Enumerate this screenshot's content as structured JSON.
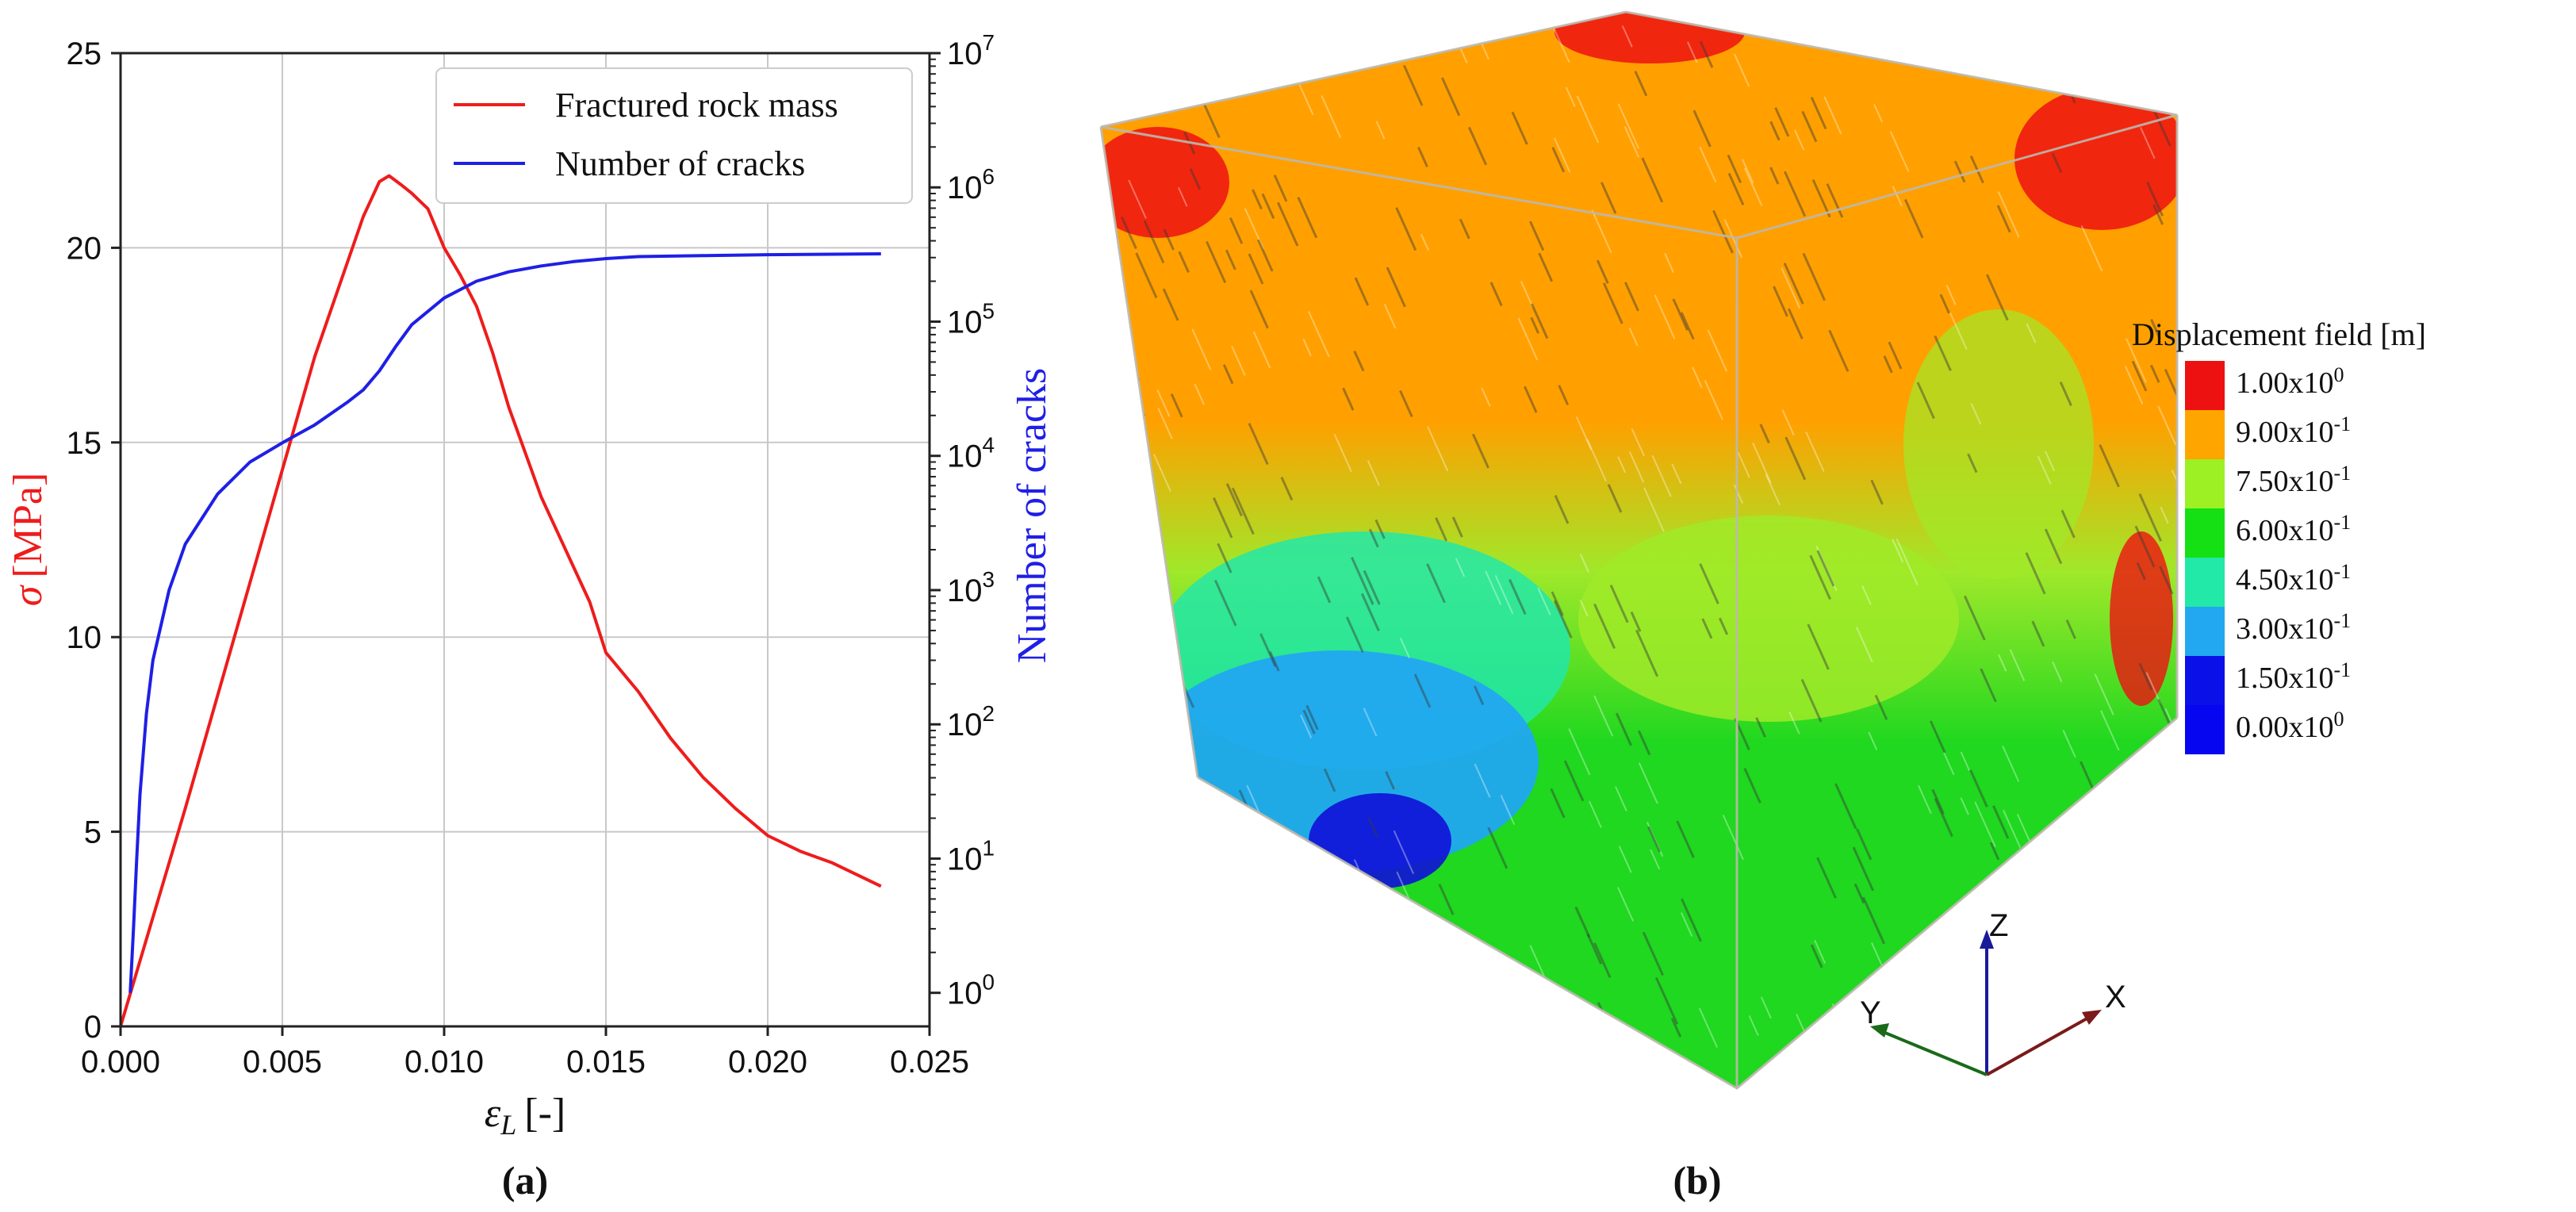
{
  "panel_labels": {
    "a": "(a)",
    "b": "(b)"
  },
  "chart_data": {
    "type": "line",
    "title": "",
    "xlabel": "ε_L [-]",
    "xlabel_parts": {
      "symbol": "ε",
      "subscript": "L",
      "unit": "[-]"
    },
    "ylabel_left": "σ [MPa]",
    "ylabel_left_parts": {
      "symbol": "σ",
      "unit": "[MPa]"
    },
    "ylabel_right": "Number of cracks",
    "xlim": [
      0,
      0.025
    ],
    "ylim_left": [
      0,
      25
    ],
    "ylim_right_log10": [
      -0.25,
      7
    ],
    "grid": true,
    "legend_position": "top-right",
    "x_ticks": [
      {
        "value": 0.0,
        "label": "0.000"
      },
      {
        "value": 0.005,
        "label": "0.005"
      },
      {
        "value": 0.01,
        "label": "0.010"
      },
      {
        "value": 0.015,
        "label": "0.015"
      },
      {
        "value": 0.02,
        "label": "0.020"
      },
      {
        "value": 0.025,
        "label": "0.025"
      }
    ],
    "y_ticks_left": [
      {
        "value": 0,
        "label": "0"
      },
      {
        "value": 5,
        "label": "5"
      },
      {
        "value": 10,
        "label": "10"
      },
      {
        "value": 15,
        "label": "15"
      },
      {
        "value": 20,
        "label": "20"
      },
      {
        "value": 25,
        "label": "25"
      }
    ],
    "y_ticks_right": [
      {
        "exp": 0,
        "base": "10",
        "sup": "0"
      },
      {
        "exp": 1,
        "base": "10",
        "sup": "1"
      },
      {
        "exp": 2,
        "base": "10",
        "sup": "2"
      },
      {
        "exp": 3,
        "base": "10",
        "sup": "3"
      },
      {
        "exp": 4,
        "base": "10",
        "sup": "4"
      },
      {
        "exp": 5,
        "base": "10",
        "sup": "5"
      },
      {
        "exp": 6,
        "base": "10",
        "sup": "6"
      },
      {
        "exp": 7,
        "base": "10",
        "sup": "7"
      }
    ],
    "series": [
      {
        "name": "Fractured rock mass",
        "axis": "left",
        "color": "#ee1c1c",
        "x": [
          0,
          0.001,
          0.002,
          0.003,
          0.004,
          0.005,
          0.006,
          0.007,
          0.0075,
          0.008,
          0.0083,
          0.0087,
          0.009,
          0.0095,
          0.01,
          0.0105,
          0.011,
          0.0115,
          0.012,
          0.013,
          0.014,
          0.0145,
          0.015,
          0.016,
          0.017,
          0.018,
          0.019,
          0.02,
          0.021,
          0.022,
          0.0235
        ],
        "y": [
          0,
          2.8,
          5.6,
          8.5,
          11.4,
          14.3,
          17.2,
          19.6,
          20.8,
          21.7,
          21.85,
          21.6,
          21.4,
          21.0,
          20.0,
          19.3,
          18.5,
          17.3,
          15.9,
          13.6,
          11.8,
          10.9,
          9.6,
          8.6,
          7.4,
          6.4,
          5.6,
          4.9,
          4.5,
          4.2,
          3.6
        ]
      },
      {
        "name": "Number of cracks",
        "axis": "right",
        "color": "#1f1fe6",
        "x": [
          0.0003,
          0.0004,
          0.0005,
          0.0006,
          0.0008,
          0.001,
          0.0015,
          0.002,
          0.003,
          0.004,
          0.005,
          0.006,
          0.007,
          0.0075,
          0.008,
          0.0085,
          0.009,
          0.01,
          0.011,
          0.012,
          0.013,
          0.014,
          0.015,
          0.016,
          0.018,
          0.02,
          0.022,
          0.0235
        ],
        "y": [
          1,
          3,
          10,
          30,
          120,
          300,
          1000,
          2200,
          5200,
          9000,
          12500,
          17000,
          25000,
          31000,
          43000,
          65000,
          95000,
          150000,
          200000,
          235000,
          260000,
          280000,
          295000,
          305000,
          310000,
          315000,
          318000,
          320000
        ]
      }
    ]
  },
  "panel_b": {
    "legend_title": "Displacement field [m]",
    "color_scale": [
      {
        "base": "1.00x10",
        "exp": "0",
        "color": "#ee1111"
      },
      {
        "base": "9.00x10",
        "exp": "-1",
        "color": "#ffa500"
      },
      {
        "base": "7.50x10",
        "exp": "-1",
        "color": "#9cf023"
      },
      {
        "base": "6.00x10",
        "exp": "-1",
        "color": "#14e014"
      },
      {
        "base": "4.50x10",
        "exp": "-1",
        "color": "#22e8a8"
      },
      {
        "base": "3.00x10",
        "exp": "-1",
        "color": "#21a8f0"
      },
      {
        "base": "1.50x10",
        "exp": "-1",
        "color": "#0a10e8"
      },
      {
        "base": "0.00x10",
        "exp": "0",
        "color": "#0606f0"
      }
    ],
    "axes_triad": {
      "x": "X",
      "y": "Y",
      "z": "Z"
    },
    "axis_colors": {
      "x": "#7a1a1a",
      "y": "#1a6a1a",
      "z": "#1a1a9a"
    }
  }
}
